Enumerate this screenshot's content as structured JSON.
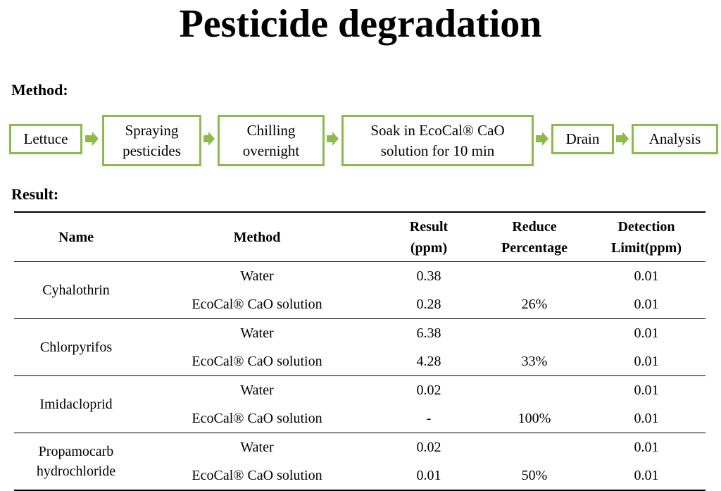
{
  "title": "Pesticide degradation",
  "method": {
    "label": "Method:",
    "steps": [
      [
        "Lettuce"
      ],
      [
        "Spraying",
        "pesticides"
      ],
      [
        "Chilling",
        "overnight"
      ],
      [
        "Soak in EcoCal® CaO",
        "solution for 10 min"
      ],
      [
        "Drain"
      ],
      [
        "Analysis"
      ]
    ]
  },
  "result": {
    "label": "Result:",
    "table": {
      "headers": [
        [
          "Name"
        ],
        [
          "Method"
        ],
        [
          "Result",
          "(ppm)"
        ],
        [
          "Reduce",
          "Percentage"
        ],
        [
          "Detection",
          "Limit(ppm)"
        ]
      ],
      "groups": [
        {
          "name": "Cyhalothrin",
          "rows": [
            {
              "method": "Water",
              "result": 0.38,
              "limit": 0.01
            },
            {
              "method": "EcoCal® CaO solution",
              "result": 0.28,
              "reduce": "26%",
              "limit": 0.01
            }
          ]
        },
        {
          "name": "Chlorpyrifos",
          "rows": [
            {
              "method": "Water",
              "result": 6.38,
              "limit": 0.01
            },
            {
              "method": "EcoCal® CaO solution",
              "result": 4.28,
              "reduce": "33%",
              "limit": 0.01
            }
          ]
        },
        {
          "name": "Imidacloprid",
          "rows": [
            {
              "method": "Water",
              "result": 0.02,
              "limit": 0.01
            },
            {
              "method": "EcoCal® CaO solution",
              "result": "-",
              "reduce": "100%",
              "limit": 0.01
            }
          ]
        },
        {
          "name": "Propamocarb hydrochloride",
          "rows": [
            {
              "method": "Water",
              "result": 0.02,
              "limit": 0.01
            },
            {
              "method": "EcoCal® CaO solution",
              "result": 0.01,
              "reduce": "50%",
              "limit": 0.01
            }
          ]
        }
      ]
    }
  }
}
